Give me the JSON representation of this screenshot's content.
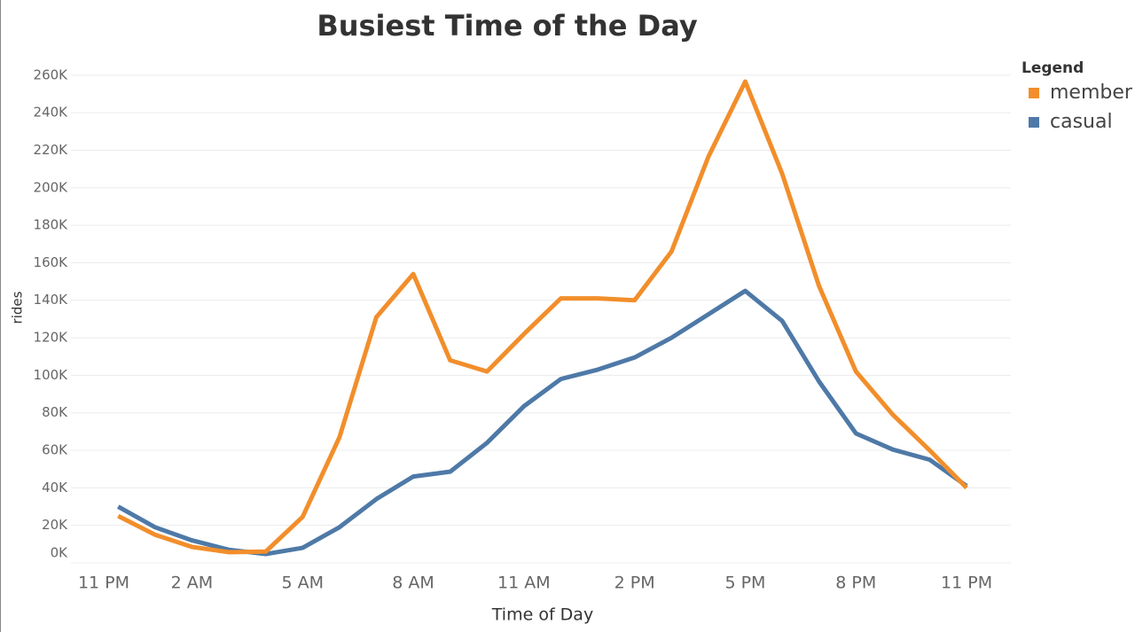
{
  "chart_data": {
    "type": "line",
    "title": "Busiest Time of the Day",
    "x_label": "Time of Day",
    "y_label": "rides",
    "legend_title": "Legend",
    "legend_position": "right",
    "grid": true,
    "x": [
      0,
      1,
      2,
      3,
      4,
      5,
      6,
      7,
      8,
      9,
      10,
      11,
      12,
      13,
      14,
      15,
      16,
      17,
      18,
      19,
      20,
      21,
      22,
      23
    ],
    "series": [
      {
        "name": "member",
        "color": "#f28e2b",
        "values": [
          25000,
          15000,
          8500,
          5700,
          6000,
          24500,
          67000,
          131000,
          154000,
          108000,
          102000,
          122000,
          141000,
          141000,
          140000,
          166000,
          216500,
          256600,
          207500,
          147600,
          102000,
          79000,
          60000,
          40000
        ]
      },
      {
        "name": "casual",
        "color": "#4e79a7",
        "values": [
          30000,
          19000,
          12000,
          7000,
          4700,
          8000,
          19000,
          34000,
          46000,
          48600,
          64000,
          83500,
          98000,
          103000,
          109500,
          120000,
          132500,
          145000,
          129000,
          96700,
          69000,
          60400,
          55000,
          41000
        ]
      }
    ],
    "xlim": [
      -1.28,
      24.2
    ],
    "xticks": [
      {
        "value": -1,
        "label": "11 PM"
      },
      {
        "value": 2,
        "label": "2 AM"
      },
      {
        "value": 5,
        "label": "5 AM"
      },
      {
        "value": 8,
        "label": "8 AM"
      },
      {
        "value": 11,
        "label": "11 AM"
      },
      {
        "value": 14,
        "label": "2 PM"
      },
      {
        "value": 17,
        "label": "5 PM"
      },
      {
        "value": 20,
        "label": "8 PM"
      },
      {
        "value": 23,
        "label": "11 PM"
      }
    ],
    "ylim": [
      0,
      267000
    ],
    "yticks": [
      {
        "value": 0,
        "label": "0K"
      },
      {
        "value": 20000,
        "label": "20K"
      },
      {
        "value": 40000,
        "label": "40K"
      },
      {
        "value": 60000,
        "label": "60K"
      },
      {
        "value": 80000,
        "label": "80K"
      },
      {
        "value": 100000,
        "label": "100K"
      },
      {
        "value": 120000,
        "label": "120K"
      },
      {
        "value": 140000,
        "label": "140K"
      },
      {
        "value": 160000,
        "label": "160K"
      },
      {
        "value": 180000,
        "label": "180K"
      },
      {
        "value": 200000,
        "label": "200K"
      },
      {
        "value": 220000,
        "label": "220K"
      },
      {
        "value": 240000,
        "label": "240K"
      },
      {
        "value": 260000,
        "label": "260K"
      }
    ]
  }
}
